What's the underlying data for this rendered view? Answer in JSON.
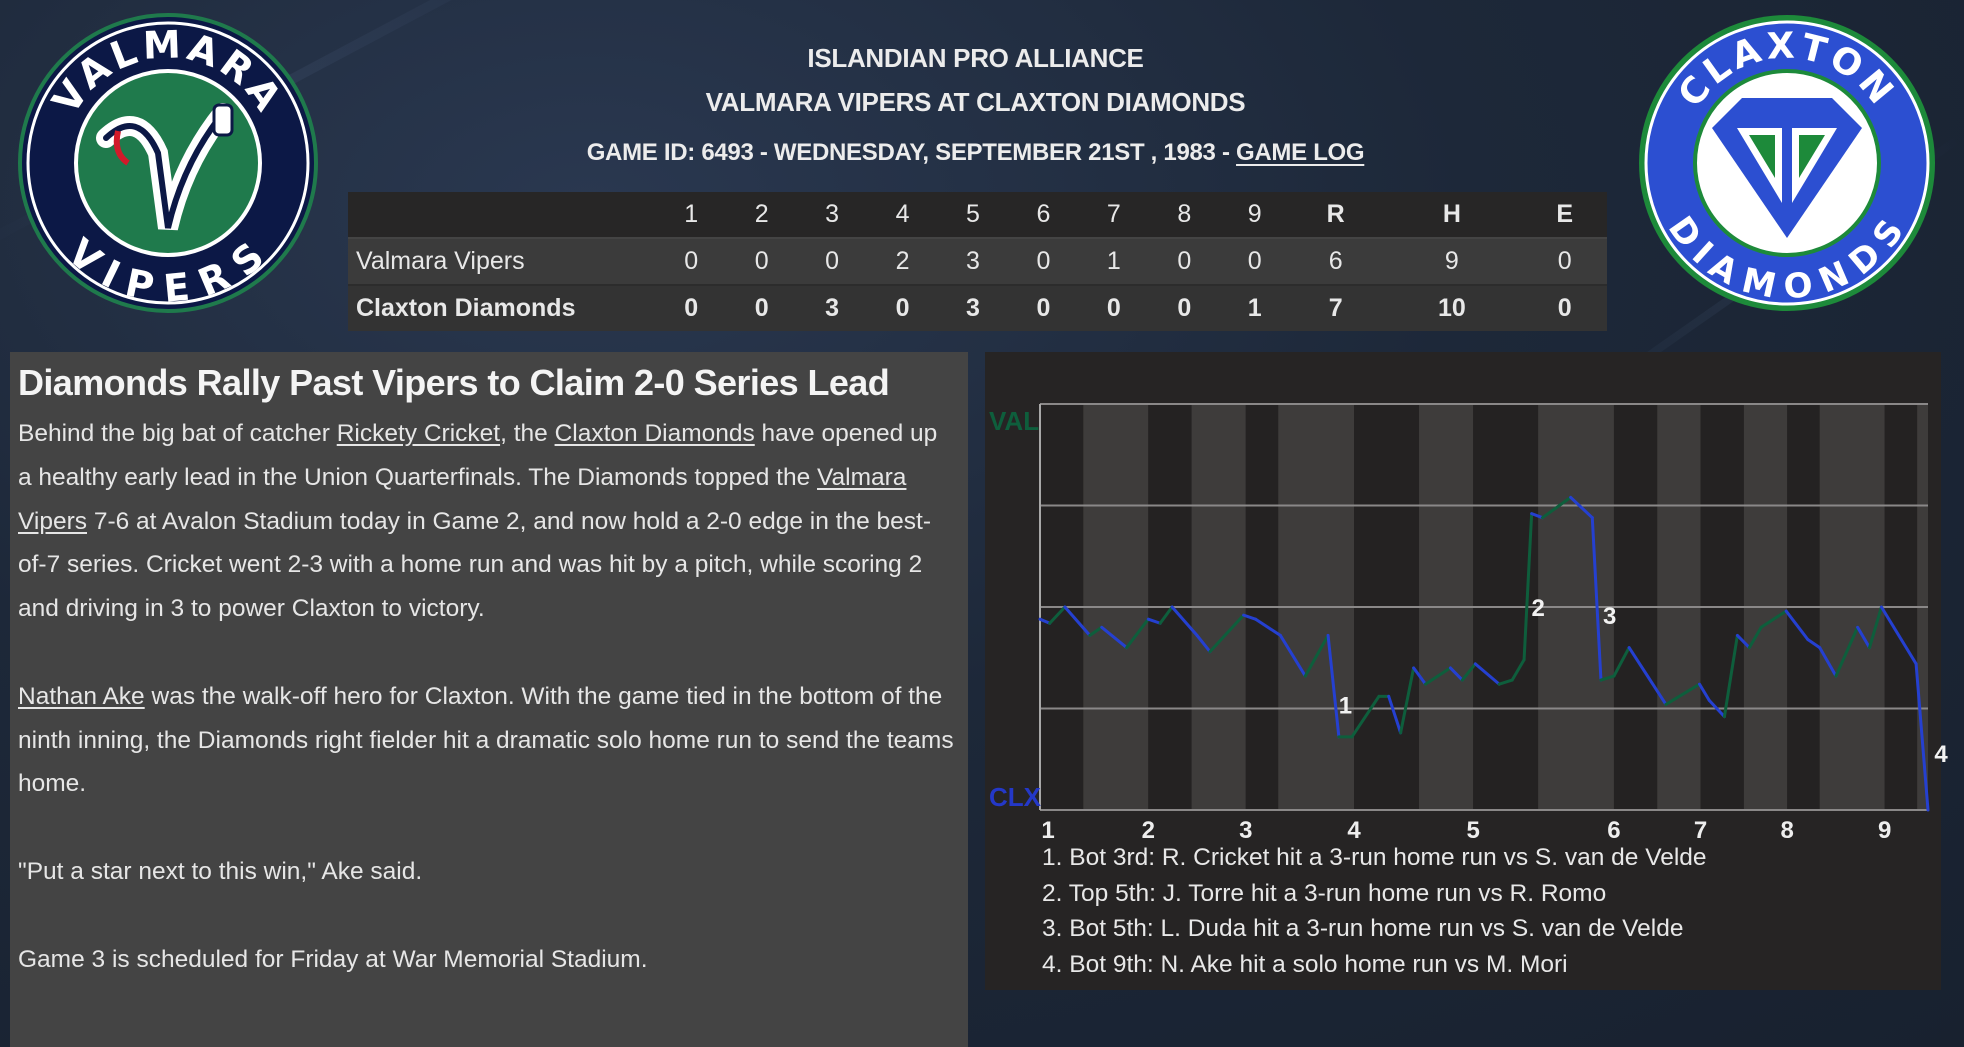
{
  "header": {
    "league": "ISLANDIAN PRO ALLIANCE",
    "matchup": "VALMARA VIPERS AT CLAXTON DIAMONDS",
    "game_info": "GAME ID: 6493 - WEDNESDAY, SEPTEMBER 21ST , 1983 - ",
    "game_log_link": "GAME LOG"
  },
  "logos": {
    "away": {
      "top_text": "VALMARA",
      "bottom_text": "VIPERS",
      "ring": "#0c1846",
      "field": "#1f7a4c"
    },
    "home": {
      "top_text": "CLAXTON",
      "bottom_text": "DIAMONDS",
      "ring": "#2c4fd1",
      "trim": "#1d8a3a"
    }
  },
  "scoreboard": {
    "columns": [
      "1",
      "2",
      "3",
      "4",
      "5",
      "6",
      "7",
      "8",
      "9",
      "R",
      "H",
      "E"
    ],
    "rows": [
      {
        "team": "Valmara Vipers",
        "cells": [
          "0",
          "0",
          "0",
          "2",
          "3",
          "0",
          "1",
          "0",
          "0",
          "6",
          "9",
          "0"
        ]
      },
      {
        "team": "Claxton Diamonds",
        "cells": [
          "0",
          "0",
          "3",
          "0",
          "3",
          "0",
          "0",
          "0",
          "1",
          "7",
          "10",
          "0"
        ]
      }
    ]
  },
  "article": {
    "headline": "Diamonds Rally Past Vipers to Claim 2-0 Series Lead",
    "paragraphs": [
      [
        {
          "text": "Behind the big bat of catcher "
        },
        {
          "text": "Rickety Cricket",
          "link": true
        },
        {
          "text": ", the "
        },
        {
          "text": "Claxton Diamonds",
          "link": true
        },
        {
          "text": " have opened up a healthy early lead in the Union Quarterfinals. The Diamonds topped the "
        },
        {
          "text": "Valmara Vipers",
          "link": true
        },
        {
          "text": " 7-6 at Avalon Stadium today in Game 2, and now hold a 2-0 edge in the best-of-7 series. Cricket went 2-3 with a home run and was hit by a pitch, while scoring 2 and driving in 3 to power Claxton to victory."
        }
      ],
      [
        {
          "text": "Nathan Ake",
          "link": true
        },
        {
          "text": " was the walk-off hero for Claxton. With the game tied in the bottom of the ninth inning, the Diamonds right fielder hit a dramatic solo home run to send the teams home."
        }
      ],
      [
        {
          "text": "\"Put a star next to this win,\" Ake said."
        }
      ],
      [
        {
          "text": "Game 3 is scheduled for Friday at War Memorial Stadium."
        }
      ]
    ]
  },
  "chart_data": {
    "type": "line",
    "title": "",
    "y_top_label": "VAL",
    "y_bottom_label": "CLX",
    "ylim": [
      0,
      1
    ],
    "xlim": [
      0,
      82
    ],
    "gridlines_y": [
      0.25,
      0.5,
      0.75
    ],
    "colors": {
      "val": "#0e5e3c",
      "clx": "#2438c8",
      "toward_val": "#0e5e3c",
      "toward_clx": "#2540d0",
      "stripe_dark": "#242222",
      "stripe_light": "#3e3c3b"
    },
    "x_tick_labels": [
      {
        "label": "1",
        "x": 0
      },
      {
        "label": "2",
        "x": 10
      },
      {
        "label": "3",
        "x": 19
      },
      {
        "label": "4",
        "x": 29
      },
      {
        "label": "5",
        "x": 40
      },
      {
        "label": "6",
        "x": 53
      },
      {
        "label": "7",
        "x": 61
      },
      {
        "label": "8",
        "x": 69
      },
      {
        "label": "9",
        "x": 78
      }
    ],
    "half_inning_boundaries": [
      0,
      4,
      10,
      14,
      19,
      22,
      29,
      35,
      40,
      46,
      53,
      57,
      61,
      65,
      69,
      72,
      78,
      81,
      82
    ],
    "points": [
      [
        0,
        0.47
      ],
      [
        0.9,
        0.46
      ],
      [
        2.3,
        0.5
      ],
      [
        4.6,
        0.43
      ],
      [
        5.7,
        0.45
      ],
      [
        8,
        0.4
      ],
      [
        10,
        0.47
      ],
      [
        11.1,
        0.46
      ],
      [
        12.2,
        0.5
      ],
      [
        14.5,
        0.43
      ],
      [
        15.7,
        0.39
      ],
      [
        18.8,
        0.48
      ],
      [
        19.9,
        0.47
      ],
      [
        22.2,
        0.43
      ],
      [
        24.5,
        0.33
      ],
      [
        26.6,
        0.43
      ],
      [
        27.6,
        0.18
      ],
      [
        28.8,
        0.18
      ],
      [
        31.3,
        0.28
      ],
      [
        32.2,
        0.28
      ],
      [
        33.3,
        0.19
      ],
      [
        34.5,
        0.35
      ],
      [
        35.6,
        0.31
      ],
      [
        37.9,
        0.35
      ],
      [
        39,
        0.32
      ],
      [
        40.2,
        0.36
      ],
      [
        42.4,
        0.31
      ],
      [
        43.6,
        0.32
      ],
      [
        44.7,
        0.37
      ],
      [
        45.4,
        0.73
      ],
      [
        46.4,
        0.72
      ],
      [
        49,
        0.77
      ],
      [
        51,
        0.72
      ],
      [
        51.8,
        0.32
      ],
      [
        53,
        0.33
      ],
      [
        54.4,
        0.4
      ],
      [
        57.8,
        0.26
      ],
      [
        60.9,
        0.31
      ],
      [
        61.8,
        0.27
      ],
      [
        63.2,
        0.23
      ],
      [
        64.4,
        0.43
      ],
      [
        65.5,
        0.4
      ],
      [
        66.6,
        0.45
      ],
      [
        68.9,
        0.49
      ],
      [
        70.9,
        0.42
      ],
      [
        72,
        0.4
      ],
      [
        73.5,
        0.33
      ],
      [
        75.5,
        0.45
      ],
      [
        76.6,
        0.4
      ],
      [
        77.7,
        0.5
      ],
      [
        80.9,
        0.36
      ],
      [
        82,
        0.0
      ]
    ],
    "annotations": [
      {
        "label": "1",
        "x": 28.2,
        "y": 0.26
      },
      {
        "label": "2",
        "x": 46,
        "y": 0.5
      },
      {
        "label": "3",
        "x": 52.6,
        "y": 0.48
      },
      {
        "label": "4",
        "x": 83.2,
        "y": 0.14
      }
    ],
    "events": [
      "1. Bot 3rd: R. Cricket hit a 3-run home run vs S. van de Velde",
      "2. Top 5th: J. Torre hit a 3-run home run vs R. Romo",
      "3. Bot 5th: L. Duda hit a 3-run home run vs S. van de Velde",
      "4. Bot 9th: N. Ake hit a solo home run vs M. Mori"
    ]
  }
}
